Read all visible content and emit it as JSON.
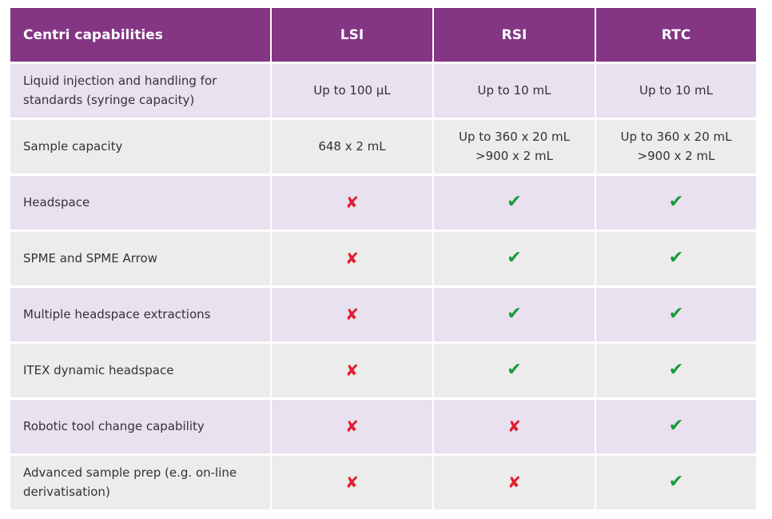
{
  "header": [
    "Centri capabilities",
    "LSI",
    "RSI",
    "RTC"
  ],
  "rows": [
    {
      "label": "Liquid injection and handling for\nstandards (syringe capacity)",
      "values": [
        "Up to 100 µL",
        "Up to 10 mL",
        "Up to 10 mL"
      ]
    },
    {
      "label": "Sample capacity",
      "values": [
        "648 x 2 mL",
        "Up to 360 x 20 mL\n>900 x 2 mL",
        "Up to 360 x 20 mL\n>900 x 2 mL"
      ]
    },
    {
      "label": "Headspace",
      "values": [
        "✘",
        "✔",
        "✔"
      ]
    },
    {
      "label": "SPME and SPME Arrow",
      "values": [
        "✘",
        "✔",
        "✔"
      ]
    },
    {
      "label": "Multiple headspace extractions",
      "values": [
        "✘",
        "✔",
        "✔"
      ]
    },
    {
      "label": "ITEX dynamic headspace",
      "values": [
        "✘",
        "✔",
        "✔"
      ]
    },
    {
      "label": "Robotic tool change capability",
      "values": [
        "✘",
        "✘",
        "✔"
      ]
    },
    {
      "label": "Advanced sample prep (e.g. on-line\nderivatisation)",
      "values": [
        "✘",
        "✘",
        "✔"
      ]
    }
  ],
  "colors": {
    "header": "#843584",
    "row_odd": "#e9e0f0",
    "row_even": "#ececec",
    "check": "#1a9a3a",
    "cross": "#e02030"
  }
}
